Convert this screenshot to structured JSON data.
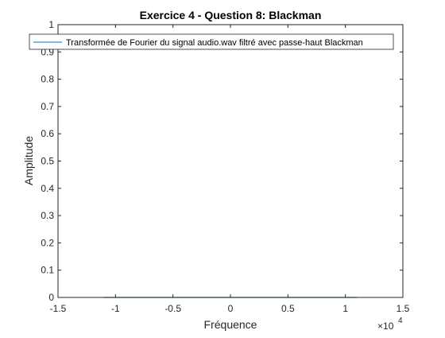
{
  "chart_data": {
    "type": "line",
    "title": "Exercice 4 - Question 8: Blackman",
    "xlabel": "Fréquence",
    "ylabel": "Amplitude",
    "x_exponent": "10",
    "x_exponent_power": "4",
    "x_multiplier_sign": "×",
    "xlim": [
      -15000,
      15000
    ],
    "ylim": [
      0,
      1
    ],
    "x_ticks": [
      -15000,
      -10000,
      -5000,
      0,
      5000,
      10000,
      15000
    ],
    "x_tick_labels": [
      "-1.5",
      "-1",
      "-0.5",
      "0",
      "0.5",
      "1",
      "1.5"
    ],
    "y_ticks": [
      0,
      0.1,
      0.2,
      0.3,
      0.4,
      0.5,
      0.6,
      0.7,
      0.8,
      0.9,
      1
    ],
    "y_tick_labels": [
      "0",
      "0.1",
      "0.2",
      "0.3",
      "0.4",
      "0.5",
      "0.6",
      "0.7",
      "0.8",
      "0.9",
      "1"
    ],
    "grid": false,
    "legend_position": "top",
    "series": [
      {
        "name": "Transformée de Fourier du signal audio.wav filtré avec passe-haut Blackman",
        "color": "#0072BD",
        "x": [
          -11025,
          -5000,
          0,
          5000,
          11025
        ],
        "y": [
          0.0,
          0.0,
          0.0,
          0.0,
          0.0
        ]
      }
    ]
  }
}
